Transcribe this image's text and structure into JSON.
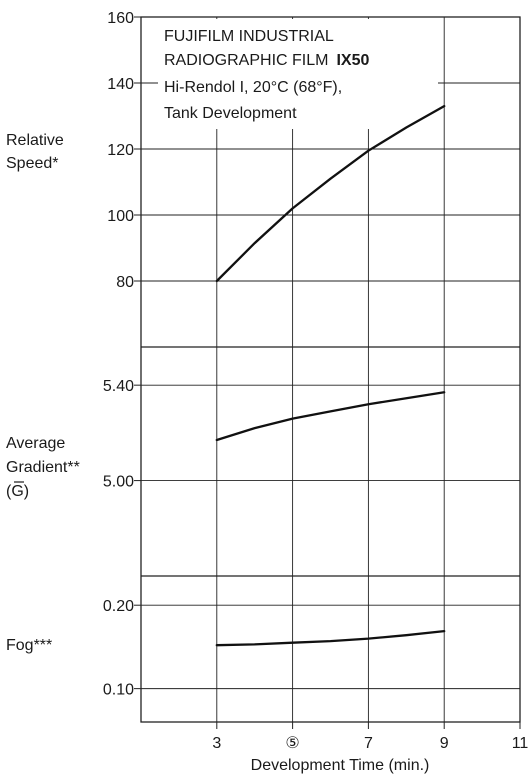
{
  "chart_data": [
    {
      "type": "line",
      "panel": "relative-speed",
      "title_lines": [
        "FUJIFILM INDUSTRIAL",
        "RADIOGRAPHIC FILM",
        "IX50",
        "Hi-Rendol I, 20°C (68°F),",
        "Tank Development"
      ],
      "ylabel_lines": [
        "Relative",
        "Speed*"
      ],
      "yticks": [
        "80",
        "100",
        "120",
        "140",
        "160"
      ],
      "ylim": [
        60,
        160
      ],
      "x": [
        3,
        4,
        5,
        6,
        7,
        8,
        9
      ],
      "y": [
        80,
        91.5,
        102,
        111,
        119.5,
        126.5,
        133
      ],
      "grid": true
    },
    {
      "type": "line",
      "panel": "average-gradient",
      "ylabel_lines": [
        "Average",
        "Gradient**",
        "(G)"
      ],
      "yticks": [
        "5.00",
        "5.40"
      ],
      "ylim": [
        4.6,
        5.56
      ],
      "x": [
        3,
        4,
        5,
        6,
        7,
        8,
        9
      ],
      "y": [
        5.17,
        5.22,
        5.26,
        5.29,
        5.32,
        5.345,
        5.37
      ],
      "grid": true
    },
    {
      "type": "line",
      "panel": "fog",
      "ylabel_lines": [
        "Fog***"
      ],
      "yticks": [
        "0.10",
        "0.20"
      ],
      "ylim": [
        0.06,
        0.235
      ],
      "x": [
        3,
        4,
        5,
        6,
        7,
        8,
        9
      ],
      "y": [
        0.152,
        0.153,
        0.155,
        0.157,
        0.16,
        0.164,
        0.169
      ],
      "grid": true
    }
  ],
  "x_axis": {
    "ticks": [
      "3",
      "⑤",
      "7",
      "9",
      "11"
    ],
    "tick_values": [
      3,
      5,
      7,
      9,
      11
    ],
    "xlim": [
      1,
      11
    ],
    "label": "Development Time (min.)"
  },
  "colors": {
    "line": "#111111",
    "grid": "#222222",
    "frame": "#222222"
  }
}
